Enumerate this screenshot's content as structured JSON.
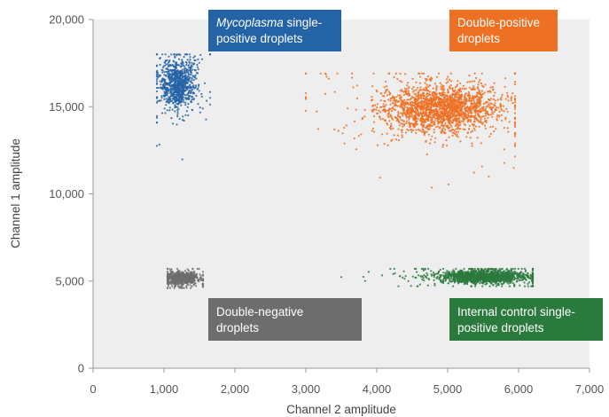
{
  "chart_data": {
    "type": "scatter",
    "title": "",
    "xlabel": "Channel 2 amplitude",
    "ylabel": "Channel 1 amplitude",
    "xlim": [
      0,
      7000
    ],
    "ylim": [
      0,
      20000
    ],
    "x_ticks": [
      0,
      1000,
      2000,
      3000,
      4000,
      5000,
      6000,
      7000
    ],
    "x_tick_labels": [
      "0",
      "1,000",
      "2,000",
      "3,000",
      "4,000",
      "5,000",
      "6,000",
      "7,000"
    ],
    "y_ticks": [
      0,
      5000,
      10000,
      15000,
      20000
    ],
    "y_tick_labels": [
      "0",
      "5,000",
      "10,000",
      "15,000",
      "20,000"
    ],
    "grid": false,
    "plot_background": "#eeeeee",
    "series": [
      {
        "name": "Mycoplasma single-positive droplets",
        "color": "#2463a6",
        "center": [
          1200,
          16300
        ],
        "spread": [
          120,
          700
        ],
        "approx_count": 900,
        "x_range": [
          900,
          1650
        ],
        "y_range": [
          10300,
          18000
        ]
      },
      {
        "name": "Double-positive droplets",
        "color": "#ee7022",
        "center": [
          4900,
          14900
        ],
        "spread": [
          400,
          650
        ],
        "approx_count": 2000,
        "x_range": [
          3000,
          5950
        ],
        "y_range": [
          9600,
          16900
        ]
      },
      {
        "name": "Double-negative droplets",
        "color": "#6d6d6d",
        "center": [
          1250,
          5150
        ],
        "spread": [
          110,
          180
        ],
        "approx_count": 600,
        "x_range": [
          1050,
          1550
        ],
        "y_range": [
          4600,
          5700
        ]
      },
      {
        "name": "Internal control single-positive droplets",
        "color": "#2a7a3e",
        "center": [
          5500,
          5250
        ],
        "spread": [
          300,
          180
        ],
        "approx_count": 1500,
        "x_range": [
          3500,
          6200
        ],
        "y_range": [
          4700,
          5700
        ]
      }
    ],
    "annotations": [
      {
        "italic": "Mycoplasma",
        "line1_rest": " single-",
        "line2": "positive droplets",
        "color": "#2463a6"
      },
      {
        "line1": "Double-positive",
        "line2": "droplets",
        "color": "#ee7022"
      },
      {
        "line1": "Double-negative",
        "line2": "droplets",
        "color": "#6d6d6d"
      },
      {
        "line1": "Internal control single-",
        "line2": "positive droplets",
        "color": "#2a7a3e"
      }
    ]
  }
}
